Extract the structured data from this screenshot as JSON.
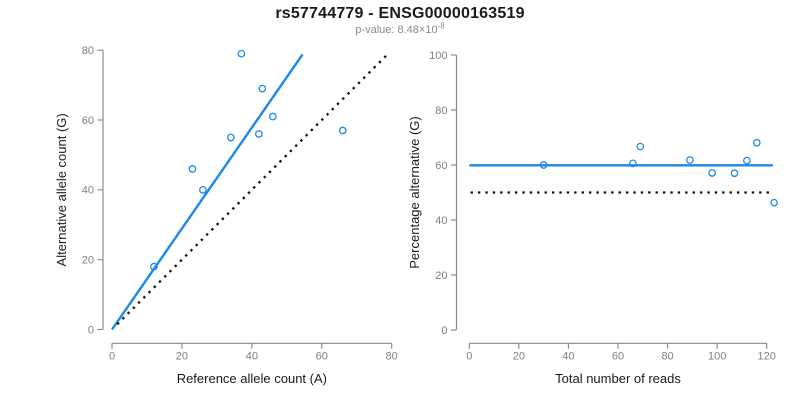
{
  "header": {
    "title": "rs57744779 - ENSG00000163519",
    "subtitle": {
      "prefix": "p-value: 8.48×10",
      "exponent": "-8"
    }
  },
  "colors": {
    "blue": "#1e88e8",
    "black": "#111111",
    "axis_line": "#8c8c8c",
    "tick_label": "#7f7f7f",
    "axis_title": "#1a1a1a",
    "background": "#ffffff"
  },
  "chart_data": [
    {
      "name": "allele-count-plot",
      "type": "scatter",
      "xlabel": "Reference allele count (A)",
      "ylabel": "Alternative allele count (G)",
      "xlim": [
        0,
        80
      ],
      "ylim": [
        0,
        80
      ],
      "xticks": [
        0,
        20,
        40,
        60,
        80
      ],
      "yticks": [
        0,
        20,
        40,
        60,
        80
      ],
      "grid": false,
      "marker": "open-circle",
      "points": [
        [
          12,
          18
        ],
        [
          23,
          46
        ],
        [
          26,
          40
        ],
        [
          34,
          55
        ],
        [
          37,
          79
        ],
        [
          42,
          56
        ],
        [
          43,
          69
        ],
        [
          46,
          61
        ],
        [
          66,
          57
        ]
      ],
      "lines": [
        {
          "name": "fit-line",
          "style": "solid",
          "color": "blue",
          "from": [
            0,
            0
          ],
          "to": [
            54.5,
            78.8
          ]
        },
        {
          "name": "identity-line",
          "style": "dotted",
          "color": "black",
          "from": [
            1.5,
            1.5
          ],
          "to": [
            78.5,
            78.5
          ]
        }
      ]
    },
    {
      "name": "percentage-reads-plot",
      "type": "scatter",
      "xlabel": "Total number of reads",
      "ylabel": "Percentage alternative (G)",
      "xlim": [
        0,
        120
      ],
      "ylim": [
        0,
        100
      ],
      "xticks": [
        0,
        20,
        40,
        60,
        80,
        100,
        120
      ],
      "yticks": [
        0,
        20,
        40,
        60,
        80,
        100
      ],
      "grid": false,
      "marker": "open-circle",
      "points": [
        [
          30,
          60
        ],
        [
          66,
          60.6
        ],
        [
          69,
          66.7
        ],
        [
          89,
          61.8
        ],
        [
          98,
          57.1
        ],
        [
          107,
          57
        ],
        [
          112,
          61.6
        ],
        [
          116,
          68.1
        ],
        [
          123,
          46.3
        ]
      ],
      "lines": [
        {
          "name": "mean-line",
          "style": "solid",
          "color": "blue",
          "from": [
            0,
            59.9
          ],
          "to": [
            122.5,
            59.9
          ]
        },
        {
          "name": "expected-line",
          "style": "dotted",
          "color": "black",
          "from": [
            0.5,
            50
          ],
          "to": [
            121.5,
            50
          ]
        }
      ]
    }
  ]
}
